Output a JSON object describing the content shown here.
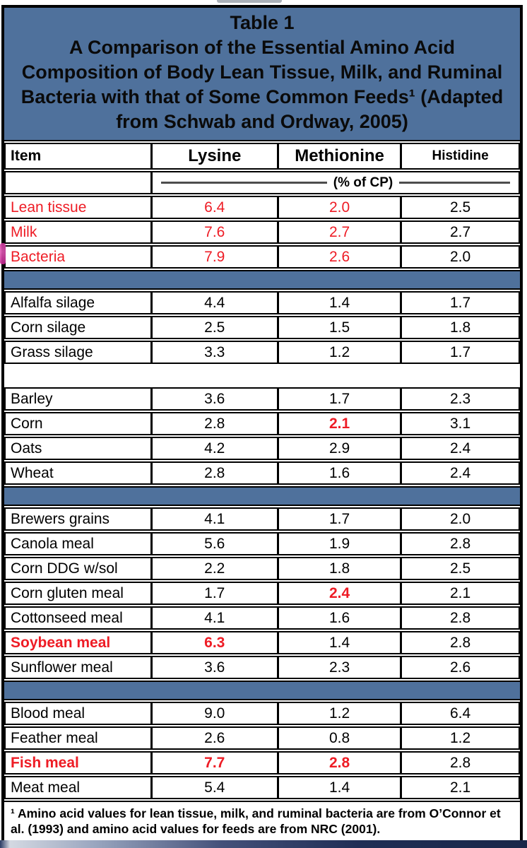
{
  "colors": {
    "band_blue": "#4f719c",
    "red": "#ee1c25",
    "border_black": "#000000",
    "artifact_magenta": "#c2248f"
  },
  "table": {
    "title": "Table 1",
    "subtitle": "A Comparison of the Essential Amino Acid Composition of Body Lean Tissue, Milk, and Ruminal Bacteria with that of Some Common Feeds¹ (Adapted from Schwab and Ordway, 2005)",
    "columns": [
      "Item",
      "Lysine",
      "Methionine",
      "Histidine"
    ],
    "unit_label": "(% of CP)",
    "rows": [
      {
        "kind": "row",
        "item": [
          "Lean tissue",
          "red"
        ],
        "values": [
          [
            "6.4",
            "red"
          ],
          [
            "2.0",
            "red"
          ],
          [
            "2.5",
            ""
          ]
        ]
      },
      {
        "kind": "row",
        "item": [
          "Milk",
          "red"
        ],
        "values": [
          [
            "7.6",
            "red"
          ],
          [
            "2.7",
            "red"
          ],
          [
            "2.7",
            ""
          ]
        ]
      },
      {
        "kind": "row",
        "item": [
          "Bacteria",
          "red"
        ],
        "values": [
          [
            "7.9",
            "red"
          ],
          [
            "2.6",
            "red"
          ],
          [
            "2.0",
            ""
          ]
        ]
      },
      {
        "kind": "separator"
      },
      {
        "kind": "row",
        "item": [
          "Alfalfa silage",
          ""
        ],
        "values": [
          [
            "4.4",
            ""
          ],
          [
            "1.4",
            ""
          ],
          [
            "1.7",
            ""
          ]
        ]
      },
      {
        "kind": "row",
        "item": [
          "Corn silage",
          ""
        ],
        "values": [
          [
            "2.5",
            ""
          ],
          [
            "1.5",
            ""
          ],
          [
            "1.8",
            ""
          ]
        ]
      },
      {
        "kind": "row",
        "item": [
          "Grass silage",
          ""
        ],
        "values": [
          [
            "3.3",
            ""
          ],
          [
            "1.2",
            ""
          ],
          [
            "1.7",
            ""
          ]
        ]
      },
      {
        "kind": "spacer"
      },
      {
        "kind": "row",
        "item": [
          "Barley",
          ""
        ],
        "values": [
          [
            "3.6",
            ""
          ],
          [
            "1.7",
            ""
          ],
          [
            "2.3",
            ""
          ]
        ]
      },
      {
        "kind": "row",
        "item": [
          "Corn",
          ""
        ],
        "values": [
          [
            "2.8",
            ""
          ],
          [
            "2.1",
            "redBold"
          ],
          [
            "3.1",
            ""
          ]
        ]
      },
      {
        "kind": "row",
        "item": [
          "Oats",
          ""
        ],
        "values": [
          [
            "4.2",
            ""
          ],
          [
            "2.9",
            ""
          ],
          [
            "2.4",
            ""
          ]
        ]
      },
      {
        "kind": "row",
        "item": [
          "Wheat",
          ""
        ],
        "values": [
          [
            "2.8",
            ""
          ],
          [
            "1.6",
            ""
          ],
          [
            "2.4",
            ""
          ]
        ]
      },
      {
        "kind": "separator"
      },
      {
        "kind": "row",
        "item": [
          "Brewers grains",
          ""
        ],
        "values": [
          [
            "4.1",
            ""
          ],
          [
            "1.7",
            ""
          ],
          [
            "2.0",
            ""
          ]
        ]
      },
      {
        "kind": "row",
        "item": [
          "Canola meal",
          ""
        ],
        "values": [
          [
            "5.6",
            ""
          ],
          [
            "1.9",
            ""
          ],
          [
            "2.8",
            ""
          ]
        ]
      },
      {
        "kind": "row",
        "item": [
          "Corn DDG w/sol",
          ""
        ],
        "values": [
          [
            "2.2",
            ""
          ],
          [
            "1.8",
            ""
          ],
          [
            "2.5",
            ""
          ]
        ]
      },
      {
        "kind": "row",
        "item": [
          "Corn gluten meal",
          ""
        ],
        "values": [
          [
            "1.7",
            ""
          ],
          [
            "2.4",
            "redBold"
          ],
          [
            "2.1",
            ""
          ]
        ]
      },
      {
        "kind": "row",
        "item": [
          "Cottonseed meal",
          ""
        ],
        "values": [
          [
            "4.1",
            ""
          ],
          [
            "1.6",
            ""
          ],
          [
            "2.8",
            ""
          ]
        ]
      },
      {
        "kind": "row",
        "item": [
          "Soybean meal",
          "redBold"
        ],
        "values": [
          [
            "6.3",
            "redBold"
          ],
          [
            "1.4",
            ""
          ],
          [
            "2.8",
            ""
          ]
        ]
      },
      {
        "kind": "row",
        "item": [
          "Sunflower meal",
          ""
        ],
        "values": [
          [
            "3.6",
            ""
          ],
          [
            "2.3",
            ""
          ],
          [
            "2.6",
            ""
          ]
        ]
      },
      {
        "kind": "separator"
      },
      {
        "kind": "row",
        "item": [
          "Blood meal",
          ""
        ],
        "values": [
          [
            "9.0",
            ""
          ],
          [
            "1.2",
            ""
          ],
          [
            "6.4",
            ""
          ]
        ]
      },
      {
        "kind": "row",
        "item": [
          "Feather meal",
          ""
        ],
        "values": [
          [
            "2.6",
            ""
          ],
          [
            "0.8",
            ""
          ],
          [
            "1.2",
            ""
          ]
        ]
      },
      {
        "kind": "row",
        "item": [
          "Fish meal",
          "redBold"
        ],
        "values": [
          [
            "7.7",
            "redBold"
          ],
          [
            "2.8",
            "redBold"
          ],
          [
            "2.8",
            ""
          ]
        ]
      },
      {
        "kind": "row",
        "item": [
          "Meat meal",
          ""
        ],
        "values": [
          [
            "5.4",
            ""
          ],
          [
            "1.4",
            ""
          ],
          [
            "2.1",
            ""
          ]
        ]
      }
    ],
    "footnote": "¹ Amino acid values for lean tissue, milk, and ruminal bacteria are from O’Connor et al. (1993) and amino acid values for feeds are from NRC (2001)."
  }
}
